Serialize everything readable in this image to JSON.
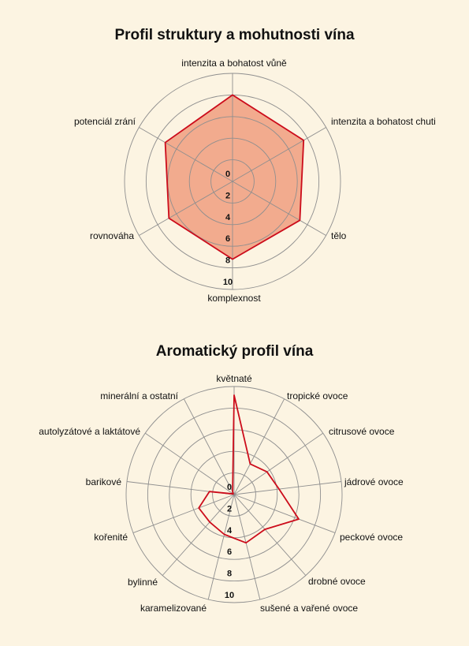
{
  "chart_data": [
    {
      "type": "radar",
      "title": "Profil struktury a mohutnosti vína",
      "categories": [
        "intenzita a bohatost vůně",
        "intenzita a bohatost chuti",
        "tělo",
        "komplexnost",
        "rovnováha",
        "potenciál zrání"
      ],
      "values": [
        8,
        7.6,
        7.2,
        7.2,
        6.8,
        7.2
      ],
      "rlim": [
        0,
        10
      ],
      "ticks": [
        "0",
        "2",
        "4",
        "6",
        "8",
        "10"
      ],
      "grid": true,
      "colors": {
        "line": "#cc0c1b",
        "fill": "#f2ab8e",
        "grid": "#8f8f8f"
      }
    },
    {
      "type": "radar",
      "title": "Aromatický profil vína",
      "categories": [
        "květnaté",
        "tropické ovoce",
        "citrusové ovoce",
        "jádrové ovoce",
        "peckové ovoce",
        "drobné ovoce",
        "sušené a vařené ovoce",
        "karamelizované",
        "bylinné",
        "kořenité",
        "barikové",
        "autolyzátové a laktátové",
        "minerální a ostatní"
      ],
      "values": [
        9.2,
        3.2,
        3.7,
        4.2,
        6.4,
        4.3,
        4.6,
        3.8,
        3.4,
        3.5,
        2.3,
        0.1,
        0.3
      ],
      "rlim": [
        0,
        10
      ],
      "ticks": [
        "0",
        "2",
        "4",
        "6",
        "8",
        "10"
      ],
      "grid": true,
      "colors": {
        "line": "#cc0c1b",
        "fill": "none",
        "grid": "#8f8f8f"
      }
    }
  ]
}
